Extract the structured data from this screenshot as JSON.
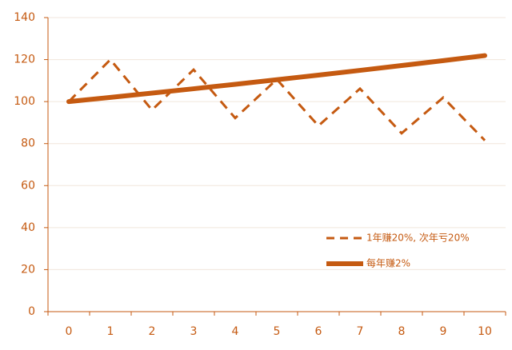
{
  "chart_data": {
    "type": "line",
    "categories": [
      "0",
      "1",
      "2",
      "3",
      "4",
      "5",
      "6",
      "7",
      "8",
      "9",
      "10"
    ],
    "series": [
      {
        "name": "1年赚20%, 次年亏20%",
        "color": "#c55a11",
        "dash": true,
        "values": [
          100,
          120,
          96,
          115.2,
          92.16,
          110.59,
          88.47,
          106.17,
          84.93,
          101.92,
          81.54
        ]
      },
      {
        "name": "每年赚2%",
        "color": "#c55a11",
        "dash": false,
        "values": [
          100,
          102,
          104.04,
          106.12,
          108.24,
          110.41,
          112.62,
          114.87,
          117.17,
          119.51,
          121.9
        ]
      }
    ],
    "ylim": [
      0,
      140
    ],
    "yticks": [
      0,
      20,
      40,
      60,
      80,
      100,
      120,
      140
    ],
    "grid": true,
    "legend": "lower-right"
  }
}
